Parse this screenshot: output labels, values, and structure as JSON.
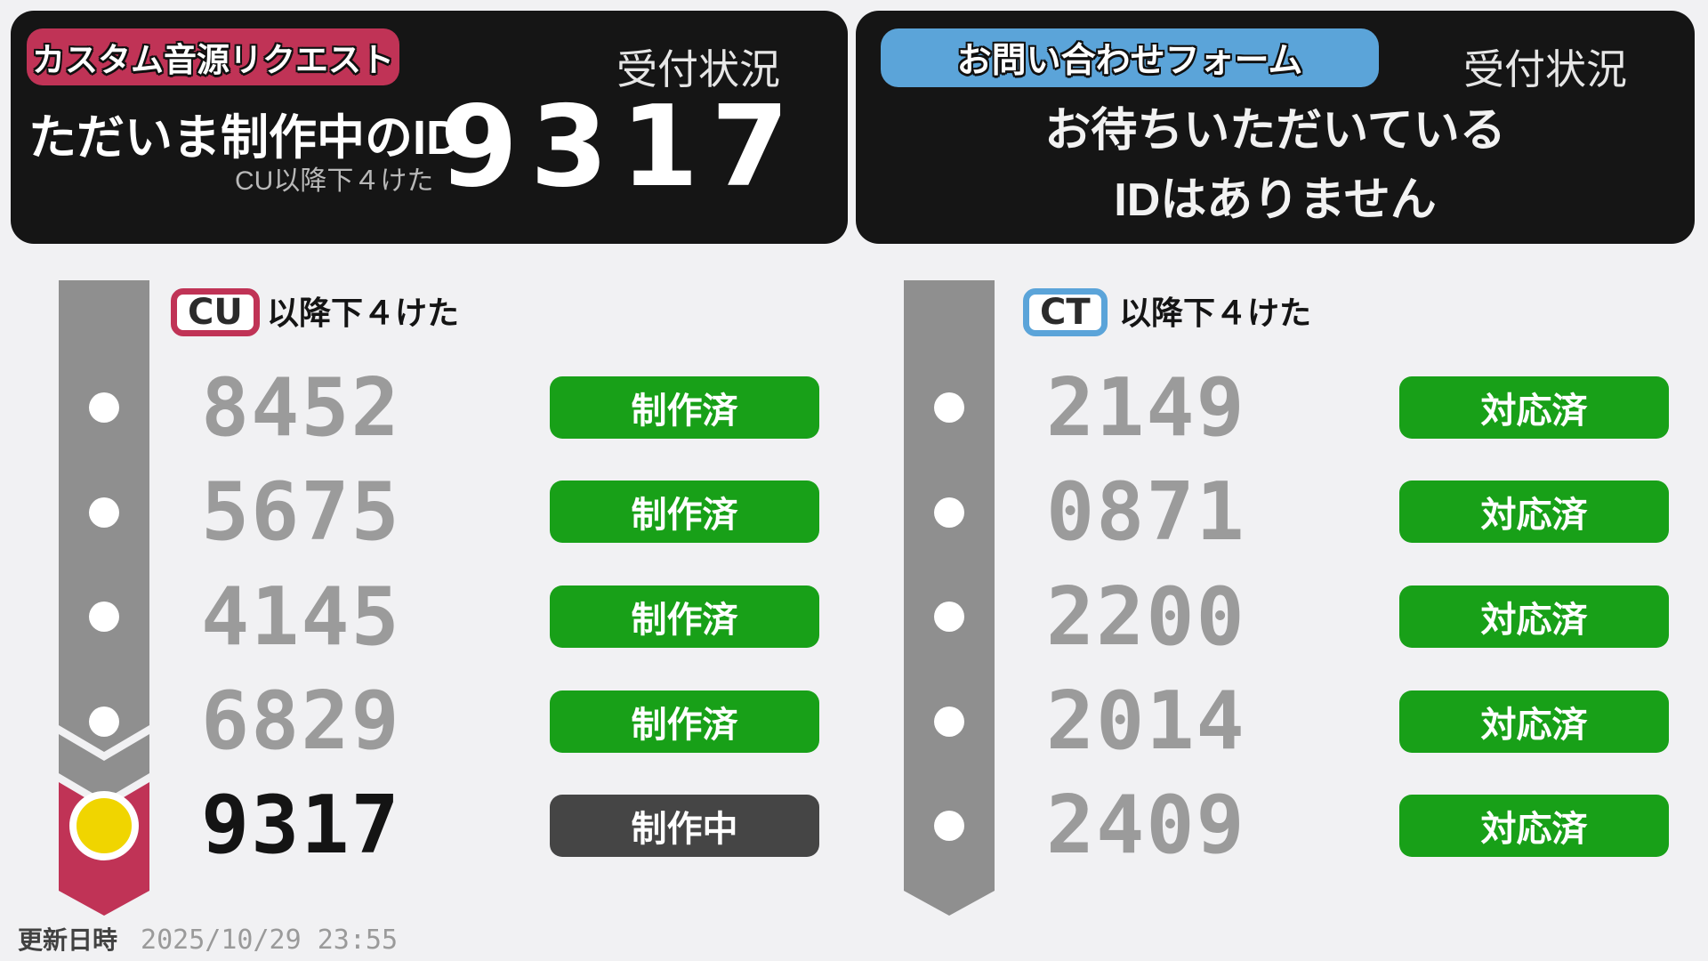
{
  "left_panel": {
    "badge": "カスタム音源リクエスト",
    "status_title": "受付状況",
    "current_label": "ただいま制作中のID",
    "current_sublabel": "CU以降下４けた",
    "current_id": "9317"
  },
  "right_panel": {
    "badge": "お問い合わせフォーム",
    "status_title": "受付状況",
    "message_line1": "お待ちいただいている",
    "message_line2": "IDはありません"
  },
  "left_column": {
    "prefix": "CU",
    "prefix_note": "以降下４けた",
    "rows": [
      {
        "id": "8452",
        "status": "制作済",
        "state": "done"
      },
      {
        "id": "5675",
        "status": "制作済",
        "state": "done"
      },
      {
        "id": "4145",
        "status": "制作済",
        "state": "done"
      },
      {
        "id": "6829",
        "status": "制作済",
        "state": "done"
      },
      {
        "id": "9317",
        "status": "制作中",
        "state": "active"
      }
    ]
  },
  "right_column": {
    "prefix": "CT",
    "prefix_note": "以降下４けた",
    "rows": [
      {
        "id": "2149",
        "status": "対応済",
        "state": "done"
      },
      {
        "id": "0871",
        "status": "対応済",
        "state": "done"
      },
      {
        "id": "2200",
        "status": "対応済",
        "state": "done"
      },
      {
        "id": "2014",
        "status": "対応済",
        "state": "done"
      },
      {
        "id": "2409",
        "status": "対応済",
        "state": "done"
      }
    ]
  },
  "footer": {
    "update_label": "更新日時",
    "update_value": "2025/10/29 23:55"
  },
  "colors": {
    "background": "#f1f1f3",
    "panel_black": "#151515",
    "crimson_accent": "#c03356",
    "blue_accent": "#5ba4d9",
    "green_status": "#18a018",
    "pending_gray": "#454545",
    "timeline_gray": "#8f8f8f",
    "number_gray": "#9b9b9b",
    "current_yellow": "#f0d500"
  }
}
